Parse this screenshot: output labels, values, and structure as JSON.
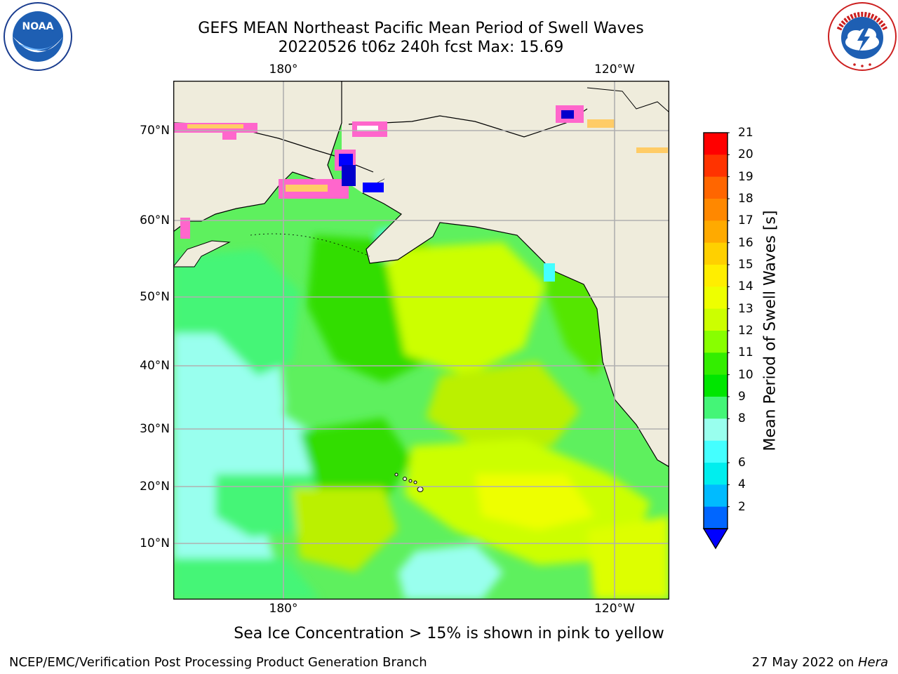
{
  "header": {
    "title_line1": "GEFS MEAN Northeast Pacific Mean Period of Swell Waves",
    "title_line2": "20220526 t06z 240h fcst   Max: 15.69"
  },
  "logos": {
    "left": "NOAA",
    "right": "NATIONAL WEATHER SERVICE"
  },
  "map": {
    "lat_labels": [
      "70°N",
      "60°N",
      "50°N",
      "40°N",
      "30°N",
      "20°N",
      "10°N"
    ],
    "lon_labels_top": [
      "180°",
      "120°W"
    ],
    "lon_labels_bottom": [
      "180°",
      "120°W"
    ],
    "ocean_color": "#5ef05e",
    "land_color": "#efecdc",
    "grid_color": "#b0b0b0"
  },
  "colorbar": {
    "label": "Mean Period of Swell Waves [s]",
    "ticks": [
      "21",
      "20",
      "19",
      "18",
      "17",
      "16",
      "15",
      "14",
      "13",
      "12",
      "11",
      "10",
      "9",
      "8",
      "6",
      "4",
      "2"
    ],
    "colors_top_to_bottom": [
      "#ff0000",
      "#ff3300",
      "#ff6600",
      "#ff8800",
      "#ffaa00",
      "#ffd000",
      "#ffee00",
      "#eeff00",
      "#ccff00",
      "#88ff00",
      "#33ee00",
      "#00e600",
      "#44f577",
      "#99ffee",
      "#44ffff",
      "#00eeee",
      "#00bbff",
      "#0066ff"
    ],
    "extend_color": "#0000ff"
  },
  "notes": {
    "ice_note": "Sea Ice Concentration > 15% is shown in pink to yellow"
  },
  "footer": {
    "left": "NCEP/EMC/Verification Post Processing Product Generation Branch",
    "right_date": "27 May 2022 on ",
    "right_host": "Hera"
  }
}
